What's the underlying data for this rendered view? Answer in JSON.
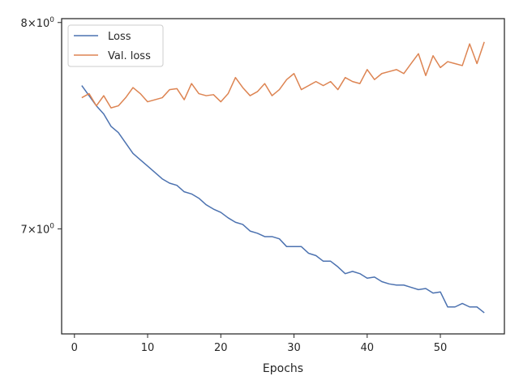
{
  "chart_data": {
    "type": "line",
    "title": "",
    "xlabel": "Epochs",
    "ylabel": "",
    "yscale": "log",
    "xlim": [
      -1.75,
      58.75
    ],
    "ylim": [
      6.54,
      8.02
    ],
    "x_ticks": [
      0,
      10,
      20,
      30,
      40,
      50
    ],
    "y_ticks": [
      {
        "value": 8,
        "label_base": "8",
        "label_mult": "10",
        "label_exp": "0"
      },
      {
        "value": 7,
        "label_base": "7",
        "label_mult": "10",
        "label_exp": "0"
      }
    ],
    "grid": false,
    "legend": "top-left",
    "x": [
      1,
      2,
      3,
      4,
      5,
      6,
      7,
      8,
      9,
      10,
      11,
      12,
      13,
      14,
      15,
      16,
      17,
      18,
      19,
      20,
      21,
      22,
      23,
      24,
      25,
      26,
      27,
      28,
      29,
      30,
      31,
      32,
      33,
      34,
      35,
      36,
      37,
      38,
      39,
      40,
      41,
      42,
      43,
      44,
      45,
      46,
      47,
      48,
      49,
      50,
      51,
      52,
      53,
      54,
      55,
      56
    ],
    "series": [
      {
        "name": "Loss",
        "color": "#4c72b0",
        "values": [
          7.68,
          7.63,
          7.58,
          7.54,
          7.48,
          7.45,
          7.4,
          7.35,
          7.32,
          7.29,
          7.26,
          7.23,
          7.21,
          7.2,
          7.17,
          7.16,
          7.14,
          7.11,
          7.09,
          7.075,
          7.05,
          7.03,
          7.02,
          6.99,
          6.98,
          6.965,
          6.965,
          6.955,
          6.92,
          6.92,
          6.92,
          6.89,
          6.88,
          6.855,
          6.855,
          6.83,
          6.8,
          6.81,
          6.8,
          6.78,
          6.785,
          6.765,
          6.755,
          6.75,
          6.75,
          6.74,
          6.73,
          6.735,
          6.715,
          6.72,
          6.655,
          6.655,
          6.67,
          6.655,
          6.655,
          6.63
        ]
      },
      {
        "name": "Val. loss",
        "color": "#dd8452",
        "values": [
          7.62,
          7.64,
          7.58,
          7.63,
          7.57,
          7.58,
          7.62,
          7.67,
          7.64,
          7.6,
          7.61,
          7.62,
          7.66,
          7.665,
          7.61,
          7.69,
          7.64,
          7.63,
          7.635,
          7.6,
          7.64,
          7.72,
          7.67,
          7.63,
          7.65,
          7.69,
          7.63,
          7.66,
          7.71,
          7.74,
          7.66,
          7.68,
          7.7,
          7.68,
          7.7,
          7.66,
          7.72,
          7.7,
          7.69,
          7.76,
          7.71,
          7.74,
          7.75,
          7.76,
          7.74,
          7.79,
          7.84,
          7.73,
          7.83,
          7.77,
          7.8,
          7.79,
          7.78,
          7.89,
          7.79,
          7.9
        ]
      }
    ]
  }
}
